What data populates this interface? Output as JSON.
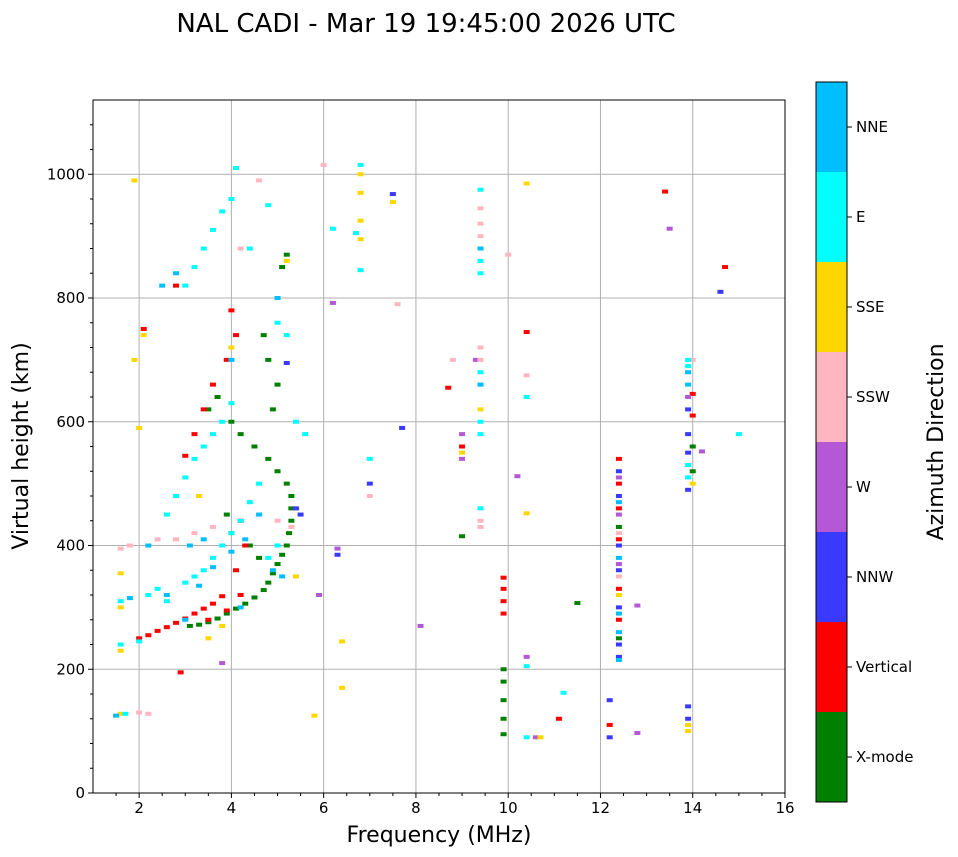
{
  "chart_data": {
    "type": "scatter",
    "title": "NAL CADI - Mar 19 19:45:00 2026 UTC",
    "xlabel": "Frequency (MHz)",
    "ylabel": "Virtual height (km)",
    "xlim": [
      1,
      16
    ],
    "ylim": [
      0,
      1120
    ],
    "xticks": [
      2,
      4,
      6,
      8,
      10,
      12,
      14,
      16
    ],
    "yticks": [
      0,
      200,
      400,
      600,
      800,
      1000
    ],
    "grid": true,
    "colorbar": {
      "label": "Azimuth Direction",
      "categories": [
        {
          "name": "X-mode",
          "color": "#008000"
        },
        {
          "name": "Vertical",
          "color": "#ff0000"
        },
        {
          "name": "NNW",
          "color": "#3a3aff"
        },
        {
          "name": "W",
          "color": "#b558d6"
        },
        {
          "name": "SSW",
          "color": "#ffb6c1"
        },
        {
          "name": "SSE",
          "color": "#ffd700"
        },
        {
          "name": "E",
          "color": "#00ffff"
        },
        {
          "name": "NNE",
          "color": "#00bfff"
        }
      ]
    },
    "series": [
      {
        "name": "X-mode",
        "points": [
          [
            3.1,
            270
          ],
          [
            3.3,
            272
          ],
          [
            3.5,
            276
          ],
          [
            3.7,
            282
          ],
          [
            3.9,
            290
          ],
          [
            4.1,
            298
          ],
          [
            4.3,
            306
          ],
          [
            4.5,
            316
          ],
          [
            4.7,
            328
          ],
          [
            4.8,
            340
          ],
          [
            4.9,
            355
          ],
          [
            5.0,
            370
          ],
          [
            5.1,
            385
          ],
          [
            5.2,
            400
          ],
          [
            5.25,
            420
          ],
          [
            5.3,
            440
          ],
          [
            5.3,
            460
          ],
          [
            5.3,
            480
          ],
          [
            5.2,
            500
          ],
          [
            4.6,
            380
          ],
          [
            4.4,
            400
          ],
          [
            4.0,
            420
          ],
          [
            3.9,
            450
          ],
          [
            3.5,
            620
          ],
          [
            3.7,
            640
          ],
          [
            4.0,
            600
          ],
          [
            4.2,
            580
          ],
          [
            4.5,
            560
          ],
          [
            4.8,
            540
          ],
          [
            5.0,
            520
          ],
          [
            4.9,
            620
          ],
          [
            5.0,
            660
          ],
          [
            4.8,
            700
          ],
          [
            4.7,
            740
          ],
          [
            5.1,
            850
          ],
          [
            5.2,
            870
          ],
          [
            9.0,
            415
          ],
          [
            9.9,
            95
          ],
          [
            9.9,
            120
          ],
          [
            9.9,
            150
          ],
          [
            9.9,
            180
          ],
          [
            9.9,
            200
          ],
          [
            11.5,
            307
          ],
          [
            12.4,
            250
          ],
          [
            12.4,
            430
          ],
          [
            14.0,
            520
          ],
          [
            14.0,
            560
          ]
        ]
      },
      {
        "name": "Vertical",
        "points": [
          [
            2.1,
            750
          ],
          [
            2.0,
            250
          ],
          [
            2.2,
            255
          ],
          [
            2.4,
            262
          ],
          [
            2.6,
            268
          ],
          [
            2.8,
            275
          ],
          [
            3.0,
            282
          ],
          [
            3.2,
            290
          ],
          [
            3.4,
            298
          ],
          [
            3.6,
            306
          ],
          [
            3.8,
            318
          ],
          [
            3.5,
            280
          ],
          [
            3.9,
            295
          ],
          [
            4.2,
            320
          ],
          [
            3.0,
            545
          ],
          [
            3.2,
            580
          ],
          [
            3.4,
            620
          ],
          [
            3.6,
            660
          ],
          [
            3.9,
            700
          ],
          [
            4.0,
            780
          ],
          [
            4.1,
            740
          ],
          [
            4.2,
            440
          ],
          [
            4.3,
            400
          ],
          [
            4.1,
            360
          ],
          [
            2.8,
            820
          ],
          [
            2.9,
            195
          ],
          [
            9.9,
            290
          ],
          [
            9.9,
            310
          ],
          [
            9.9,
            330
          ],
          [
            9.9,
            348
          ],
          [
            10.4,
            745
          ],
          [
            11.1,
            120
          ],
          [
            12.2,
            110
          ],
          [
            12.4,
            540
          ],
          [
            12.4,
            500
          ],
          [
            12.4,
            460
          ],
          [
            12.4,
            410
          ],
          [
            12.4,
            330
          ],
          [
            12.4,
            280
          ],
          [
            13.4,
            972
          ],
          [
            14.0,
            645
          ],
          [
            14.0,
            610
          ],
          [
            14.7,
            850
          ],
          [
            8.7,
            655
          ],
          [
            9.0,
            560
          ]
        ]
      },
      {
        "name": "NNW",
        "points": [
          [
            6.3,
            385
          ],
          [
            7.0,
            500
          ],
          [
            7.5,
            968
          ],
          [
            7.7,
            590
          ],
          [
            5.4,
            460
          ],
          [
            5.5,
            450
          ],
          [
            5.2,
            695
          ],
          [
            12.2,
            90
          ],
          [
            12.2,
            150
          ],
          [
            12.4,
            220
          ],
          [
            12.4,
            240
          ],
          [
            12.4,
            300
          ],
          [
            12.4,
            360
          ],
          [
            12.4,
            400
          ],
          [
            12.4,
            480
          ],
          [
            12.4,
            520
          ],
          [
            13.9,
            490
          ],
          [
            13.9,
            550
          ],
          [
            13.9,
            580
          ],
          [
            13.9,
            620
          ],
          [
            13.9,
            140
          ],
          [
            13.9,
            120
          ],
          [
            14.6,
            810
          ]
        ]
      },
      {
        "name": "W",
        "points": [
          [
            3.8,
            210
          ],
          [
            5.9,
            320
          ],
          [
            6.2,
            792
          ],
          [
            6.3,
            395
          ],
          [
            8.1,
            270
          ],
          [
            9.0,
            580
          ],
          [
            9.0,
            540
          ],
          [
            9.3,
            700
          ],
          [
            10.2,
            512
          ],
          [
            10.4,
            220
          ],
          [
            10.6,
            90
          ],
          [
            12.4,
            370
          ],
          [
            12.4,
            450
          ],
          [
            12.4,
            510
          ],
          [
            12.8,
            303
          ],
          [
            12.8,
            97
          ],
          [
            13.5,
            912
          ],
          [
            14.2,
            552
          ],
          [
            13.9,
            640
          ]
        ]
      },
      {
        "name": "SSW",
        "points": [
          [
            1.6,
            395
          ],
          [
            1.8,
            400
          ],
          [
            2.0,
            130
          ],
          [
            2.2,
            128
          ],
          [
            2.4,
            410
          ],
          [
            2.8,
            410
          ],
          [
            3.2,
            420
          ],
          [
            3.6,
            430
          ],
          [
            4.6,
            990
          ],
          [
            4.2,
            880
          ],
          [
            5.0,
            440
          ],
          [
            5.3,
            430
          ],
          [
            6.0,
            1015
          ],
          [
            7.0,
            480
          ],
          [
            7.6,
            790
          ],
          [
            8.8,
            700
          ],
          [
            9.4,
            880
          ],
          [
            9.4,
            900
          ],
          [
            9.4,
            920
          ],
          [
            9.4,
            945
          ],
          [
            9.4,
            720
          ],
          [
            9.4,
            700
          ],
          [
            9.4,
            440
          ],
          [
            9.4,
            430
          ],
          [
            10.0,
            870
          ],
          [
            10.4,
            675
          ],
          [
            12.4,
            350
          ],
          [
            12.4,
            420
          ],
          [
            14.0,
            700
          ]
        ]
      },
      {
        "name": "SSE",
        "points": [
          [
            1.6,
            230
          ],
          [
            1.6,
            300
          ],
          [
            1.6,
            355
          ],
          [
            1.6,
            128
          ],
          [
            1.9,
            990
          ],
          [
            1.9,
            700
          ],
          [
            2.0,
            590
          ],
          [
            2.1,
            740
          ],
          [
            3.5,
            250
          ],
          [
            3.8,
            270
          ],
          [
            4.0,
            720
          ],
          [
            3.3,
            480
          ],
          [
            5.2,
            860
          ],
          [
            5.4,
            350
          ],
          [
            5.8,
            125
          ],
          [
            6.4,
            170
          ],
          [
            6.4,
            245
          ],
          [
            6.8,
            1000
          ],
          [
            6.8,
            970
          ],
          [
            6.8,
            925
          ],
          [
            6.8,
            895
          ],
          [
            7.5,
            955
          ],
          [
            9.0,
            550
          ],
          [
            9.4,
            620
          ],
          [
            10.4,
            985
          ],
          [
            10.4,
            452
          ],
          [
            10.7,
            90
          ],
          [
            12.4,
            320
          ],
          [
            13.9,
            100
          ],
          [
            13.9,
            110
          ],
          [
            14.0,
            500
          ]
        ]
      },
      {
        "name": "E",
        "points": [
          [
            1.6,
            240
          ],
          [
            1.6,
            310
          ],
          [
            1.7,
            128
          ],
          [
            2.0,
            245
          ],
          [
            2.2,
            320
          ],
          [
            2.4,
            330
          ],
          [
            2.6,
            310
          ],
          [
            3.0,
            340
          ],
          [
            3.2,
            350
          ],
          [
            3.4,
            360
          ],
          [
            3.6,
            380
          ],
          [
            3.8,
            400
          ],
          [
            4.0,
            420
          ],
          [
            4.2,
            440
          ],
          [
            4.4,
            470
          ],
          [
            4.6,
            500
          ],
          [
            4.8,
            380
          ],
          [
            5.0,
            400
          ],
          [
            2.6,
            450
          ],
          [
            2.8,
            480
          ],
          [
            3.0,
            510
          ],
          [
            3.2,
            540
          ],
          [
            3.4,
            560
          ],
          [
            3.6,
            580
          ],
          [
            3.8,
            600
          ],
          [
            4.0,
            630
          ],
          [
            3.0,
            820
          ],
          [
            3.2,
            850
          ],
          [
            3.4,
            880
          ],
          [
            3.6,
            910
          ],
          [
            3.8,
            940
          ],
          [
            4.0,
            960
          ],
          [
            4.1,
            1010
          ],
          [
            4.4,
            880
          ],
          [
            4.8,
            950
          ],
          [
            5.0,
            760
          ],
          [
            5.2,
            740
          ],
          [
            5.4,
            600
          ],
          [
            5.6,
            580
          ],
          [
            6.2,
            912
          ],
          [
            6.8,
            1015
          ],
          [
            6.8,
            845
          ],
          [
            6.7,
            905
          ],
          [
            7.0,
            540
          ],
          [
            9.4,
            975
          ],
          [
            9.4,
            860
          ],
          [
            9.4,
            840
          ],
          [
            9.4,
            680
          ],
          [
            9.4,
            660
          ],
          [
            9.4,
            600
          ],
          [
            9.4,
            580
          ],
          [
            9.4,
            460
          ],
          [
            10.4,
            640
          ],
          [
            10.4,
            205
          ],
          [
            10.4,
            90
          ],
          [
            11.2,
            162
          ],
          [
            13.9,
            700
          ],
          [
            13.9,
            690
          ],
          [
            13.9,
            530
          ],
          [
            13.9,
            510
          ],
          [
            15.0,
            580
          ]
        ]
      },
      {
        "name": "NNE",
        "points": [
          [
            1.5,
            125
          ],
          [
            1.8,
            315
          ],
          [
            2.2,
            400
          ],
          [
            2.6,
            320
          ],
          [
            3.0,
            280
          ],
          [
            3.3,
            335
          ],
          [
            3.6,
            365
          ],
          [
            4.0,
            390
          ],
          [
            4.3,
            410
          ],
          [
            4.6,
            450
          ],
          [
            4.9,
            360
          ],
          [
            5.1,
            350
          ],
          [
            2.5,
            820
          ],
          [
            2.8,
            840
          ],
          [
            3.1,
            400
          ],
          [
            3.4,
            410
          ],
          [
            4.0,
            700
          ],
          [
            4.2,
            300
          ],
          [
            5.0,
            800
          ],
          [
            9.4,
            660
          ],
          [
            9.4,
            880
          ],
          [
            12.4,
            215
          ],
          [
            12.4,
            260
          ],
          [
            12.4,
            290
          ],
          [
            12.4,
            380
          ],
          [
            12.4,
            470
          ],
          [
            13.9,
            680
          ],
          [
            13.9,
            660
          ]
        ]
      }
    ]
  }
}
